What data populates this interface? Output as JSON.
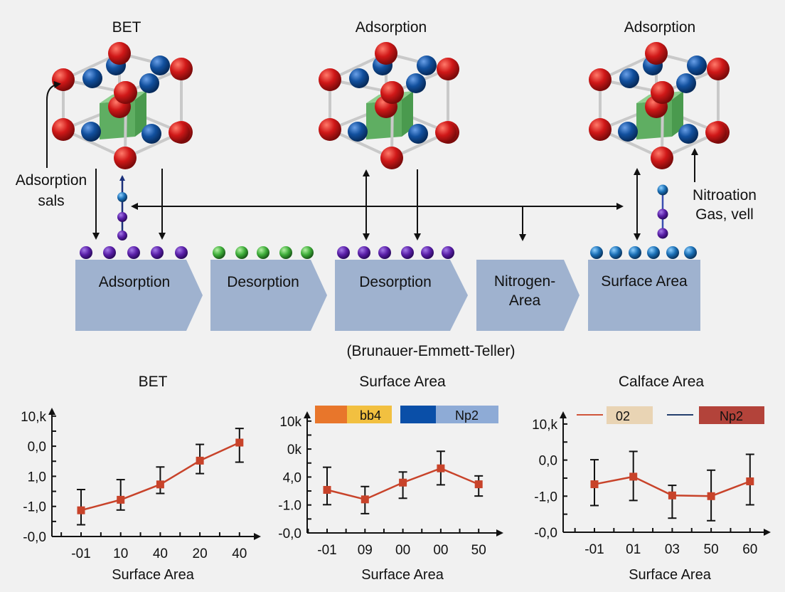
{
  "diagram": {
    "crystal_titles": [
      "BET",
      "Adsorption",
      "Adsorption"
    ],
    "left_annotation": [
      "Adsorption",
      "sals"
    ],
    "right_annotation": [
      "Nitroation",
      "Gas, vell"
    ],
    "steps": [
      {
        "label": [
          "Adsorption"
        ],
        "dot_color": "#5a1fa8"
      },
      {
        "label": [
          "Desorption"
        ],
        "dot_color": "#3fae3a"
      },
      {
        "label": [
          "Desorption"
        ],
        "dot_color": "#5a1fa8"
      },
      {
        "label": [
          "Nitrogen-",
          "Area"
        ],
        "dot_color": null
      },
      {
        "label": [
          "Surface Area"
        ],
        "dot_color": "#1a6fb5"
      }
    ],
    "caption": "(Brunauer-Emmett-Teller)",
    "colors": {
      "box": "#9fb2cf",
      "atom_red": "#cc1a1a",
      "atom_blue": "#124f9e",
      "core_green": "#6fbf73"
    }
  },
  "chart_data": [
    {
      "type": "line",
      "title": "BET",
      "xlabel": "Surface Area",
      "categories": [
        "-01",
        "10",
        "40",
        "20",
        "40"
      ],
      "ytick_labels": [
        "-0,0",
        "-1,0",
        "1,0",
        "0,0",
        "10,k"
      ],
      "series": [
        {
          "color": "#c8432a",
          "values": [
            0.87,
            1.22,
            1.73,
            2.52,
            3.12
          ],
          "err_high": [
            1.56,
            1.89,
            2.31,
            3.06,
            3.59
          ],
          "err_low": [
            0.39,
            0.88,
            1.43,
            2.09,
            2.47
          ]
        }
      ],
      "legend": []
    },
    {
      "type": "line",
      "title": "Surface Area",
      "xlabel": "Surface Area",
      "categories": [
        "-01",
        "09",
        "00",
        "00",
        "50"
      ],
      "ytick_labels": [
        "-0,0",
        "-1.0",
        "4,0",
        "0k",
        "10k"
      ],
      "series": [
        {
          "color": "#c8432a",
          "values": [
            1.54,
            1.2,
            1.8,
            2.31,
            1.74
          ],
          "err_high": [
            2.35,
            1.66,
            2.18,
            2.92,
            2.04
          ],
          "err_low": [
            1.01,
            0.69,
            1.24,
            1.72,
            1.32
          ]
        }
      ],
      "legend": [
        {
          "label": "bb4",
          "swatch": "#e8762b",
          "fill": "#f2c040"
        },
        {
          "label": "Np2",
          "swatch": "#0a4fa8",
          "fill": "#8eabd6"
        }
      ]
    },
    {
      "type": "line",
      "title": "Calface Area",
      "xlabel": "Surface Area",
      "categories": [
        "-01",
        "01",
        "03",
        "50",
        "60"
      ],
      "ytick_labels": [
        "-0,0",
        "-1,0",
        "0,0",
        "10,k"
      ],
      "series": [
        {
          "color": "#c8432a",
          "values": [
            1.33,
            1.54,
            1.02,
            1.0,
            1.41
          ],
          "err_high": [
            2.01,
            2.24,
            1.3,
            1.72,
            2.16
          ],
          "err_low": [
            0.74,
            0.88,
            0.39,
            0.32,
            0.76
          ]
        }
      ],
      "legend": [
        {
          "label": "02",
          "line": "#d0553a",
          "fill": "#e9d4b4"
        },
        {
          "label": "Np2",
          "line": "#24406e",
          "fill": "#b3433a"
        }
      ]
    }
  ]
}
